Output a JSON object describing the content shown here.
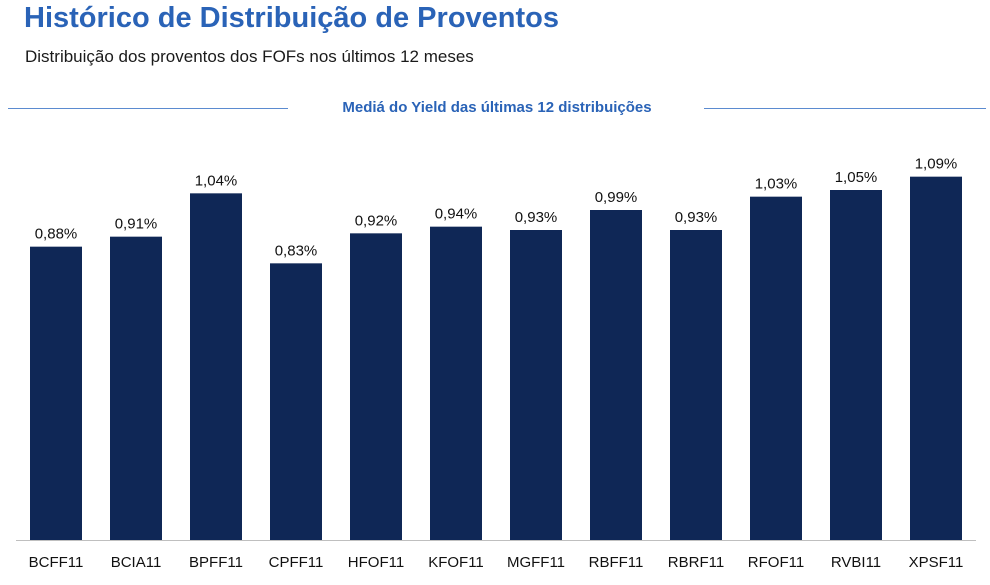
{
  "header": {
    "title": "Histórico de Distribuição de Proventos",
    "subtitle": "Distribuição dos proventos dos FOFs nos últimos 12 meses"
  },
  "section": {
    "label": "Mediá do Yield das últimas 12 distribuições"
  },
  "colors": {
    "bar": "#0f2756",
    "title": "#2a63b7",
    "rule": "#5b8bd0"
  },
  "chart_data": {
    "type": "bar",
    "categories": [
      "BCFF11",
      "BCIA11",
      "BPFF11",
      "CPFF11",
      "HFOF11",
      "KFOF11",
      "MGFF11",
      "RBFF11",
      "RBRF11",
      "RFOF11",
      "RVBI11",
      "XPSF11"
    ],
    "values": [
      0.88,
      0.91,
      1.04,
      0.83,
      0.92,
      0.94,
      0.93,
      0.99,
      0.93,
      1.03,
      1.05,
      1.09
    ],
    "value_labels": [
      "0,88%",
      "0,91%",
      "1,04%",
      "0,83%",
      "0,92%",
      "0,94%",
      "0,93%",
      "0,99%",
      "0,93%",
      "1,03%",
      "1,05%",
      "1,09%"
    ],
    "unit": "%",
    "ylim": [
      0,
      1.2
    ],
    "grid": false,
    "legend": "none"
  }
}
